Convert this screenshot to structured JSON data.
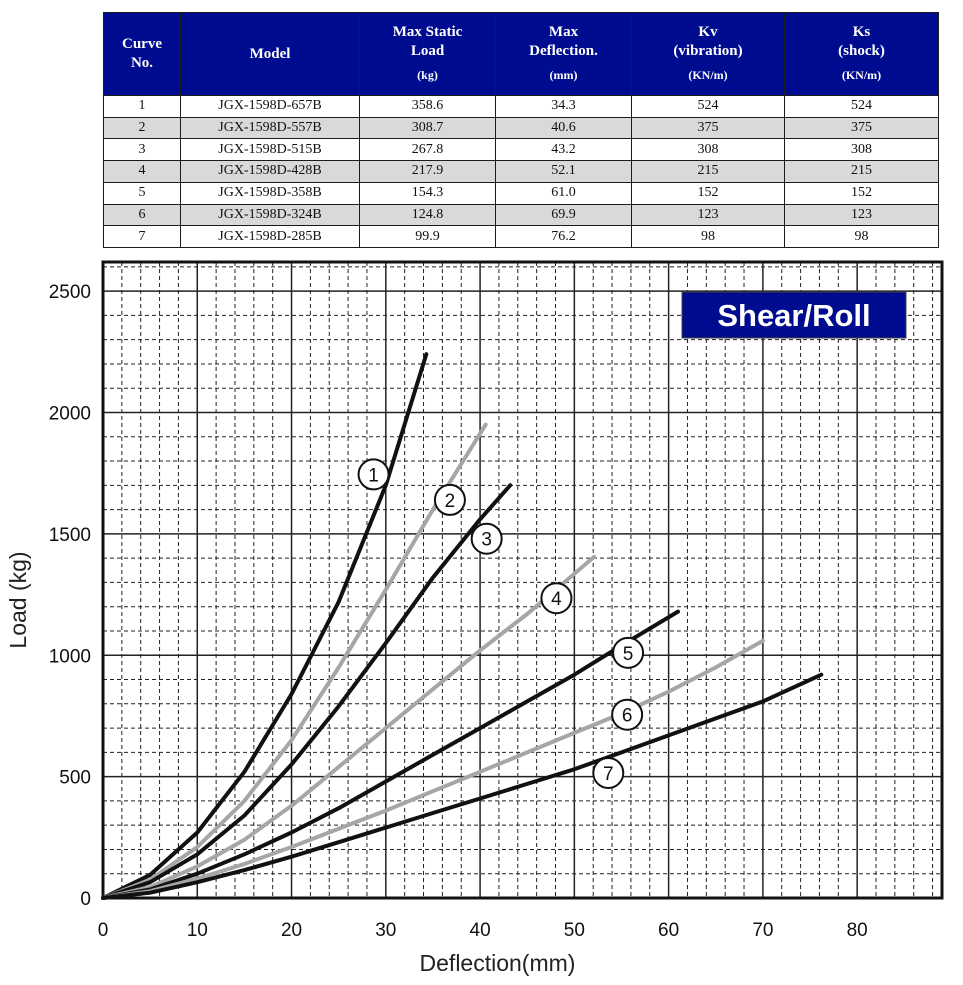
{
  "table": {
    "headers": [
      {
        "lines": [
          "Curve",
          "No."
        ],
        "unit": ""
      },
      {
        "lines": [
          "Model"
        ],
        "unit": ""
      },
      {
        "lines": [
          "Max Static",
          "Load"
        ],
        "unit": "(kg)"
      },
      {
        "lines": [
          "Max",
          "Deflection."
        ],
        "unit": "(mm)"
      },
      {
        "lines": [
          "Kv",
          "(vibration)"
        ],
        "unit": "(KN/m)"
      },
      {
        "lines": [
          "Ks",
          "(shock)"
        ],
        "unit": "(KN/m)"
      }
    ],
    "rows": [
      [
        "1",
        "JGX-1598D-657B",
        "358.6",
        "34.3",
        "524",
        "524"
      ],
      [
        "2",
        "JGX-1598D-557B",
        "308.7",
        "40.6",
        "375",
        "375"
      ],
      [
        "3",
        "JGX-1598D-515B",
        "267.8",
        "43.2",
        "308",
        "308"
      ],
      [
        "4",
        "JGX-1598D-428B",
        "217.9",
        "52.1",
        "215",
        "215"
      ],
      [
        "5",
        "JGX-1598D-358B",
        "154.3",
        "61.0",
        "152",
        "152"
      ],
      [
        "6",
        "JGX-1598D-324B",
        "124.8",
        "69.9",
        "123",
        "123"
      ],
      [
        "7",
        "JGX-1598D-285B",
        "99.9",
        "76.2",
        "98",
        "98"
      ]
    ],
    "colors": {
      "header_bg": "#000c8f",
      "header_text": "#ffffff",
      "stripe_bg": "#d9d9d9"
    }
  },
  "chart_data": {
    "type": "line",
    "badge": "Shear/Roll",
    "xlabel": "Deflection(mm)",
    "ylabel": "Load (kg)",
    "xlim": [
      0,
      89
    ],
    "ylim": [
      0,
      2620
    ],
    "xticks": [
      0,
      10,
      20,
      30,
      40,
      50,
      60,
      70,
      80
    ],
    "yticks": [
      0,
      500,
      1000,
      1500,
      2000,
      2500
    ],
    "grid": true,
    "colors": {
      "black_curve": "#111111",
      "gray_curve": "#a6a6a6",
      "badge_bg": "#000c8f",
      "badge_text": "#ffffff"
    },
    "series": [
      {
        "label": "1",
        "color": "#111111",
        "points": [
          [
            0,
            0
          ],
          [
            5,
            95
          ],
          [
            10,
            270
          ],
          [
            15,
            520
          ],
          [
            20,
            840
          ],
          [
            25,
            1220
          ],
          [
            30,
            1700
          ],
          [
            34.3,
            2240
          ]
        ],
        "label_at": [
          28.7,
          1745
        ]
      },
      {
        "label": "2",
        "color": "#a6a6a6",
        "points": [
          [
            0,
            0
          ],
          [
            5,
            75
          ],
          [
            10,
            210
          ],
          [
            15,
            400
          ],
          [
            20,
            650
          ],
          [
            25,
            950
          ],
          [
            30,
            1270
          ],
          [
            35,
            1600
          ],
          [
            40.6,
            1950
          ]
        ],
        "label_at": [
          36.8,
          1640
        ]
      },
      {
        "label": "3",
        "color": "#111111",
        "points": [
          [
            0,
            0
          ],
          [
            5,
            65
          ],
          [
            10,
            180
          ],
          [
            15,
            340
          ],
          [
            20,
            550
          ],
          [
            25,
            790
          ],
          [
            30,
            1050
          ],
          [
            35,
            1320
          ],
          [
            40,
            1560
          ],
          [
            43.2,
            1700
          ]
        ],
        "label_at": [
          40.7,
          1480
        ]
      },
      {
        "label": "4",
        "color": "#a6a6a6",
        "points": [
          [
            0,
            0
          ],
          [
            5,
            45
          ],
          [
            10,
            130
          ],
          [
            15,
            240
          ],
          [
            20,
            380
          ],
          [
            25,
            540
          ],
          [
            30,
            700
          ],
          [
            35,
            860
          ],
          [
            40,
            1020
          ],
          [
            45,
            1170
          ],
          [
            52.1,
            1405
          ]
        ],
        "label_at": [
          48.1,
          1235
        ]
      },
      {
        "label": "5",
        "color": "#111111",
        "points": [
          [
            0,
            0
          ],
          [
            5,
            35
          ],
          [
            10,
            100
          ],
          [
            15,
            180
          ],
          [
            20,
            270
          ],
          [
            25,
            370
          ],
          [
            30,
            480
          ],
          [
            35,
            590
          ],
          [
            40,
            700
          ],
          [
            45,
            810
          ],
          [
            50,
            920
          ],
          [
            55,
            1040
          ],
          [
            61,
            1180
          ]
        ],
        "label_at": [
          55.7,
          1010
        ]
      },
      {
        "label": "6",
        "color": "#a6a6a6",
        "points": [
          [
            0,
            0
          ],
          [
            5,
            28
          ],
          [
            10,
            80
          ],
          [
            15,
            140
          ],
          [
            20,
            210
          ],
          [
            25,
            285
          ],
          [
            30,
            360
          ],
          [
            35,
            440
          ],
          [
            40,
            520
          ],
          [
            45,
            600
          ],
          [
            50,
            680
          ],
          [
            55,
            760
          ],
          [
            60,
            850
          ],
          [
            65,
            950
          ],
          [
            70,
            1060
          ]
        ],
        "label_at": [
          55.6,
          755
        ]
      },
      {
        "label": "7",
        "color": "#111111",
        "points": [
          [
            0,
            0
          ],
          [
            5,
            22
          ],
          [
            10,
            65
          ],
          [
            15,
            115
          ],
          [
            20,
            170
          ],
          [
            25,
            230
          ],
          [
            30,
            290
          ],
          [
            35,
            350
          ],
          [
            40,
            410
          ],
          [
            45,
            470
          ],
          [
            50,
            530
          ],
          [
            55,
            600
          ],
          [
            60,
            670
          ],
          [
            65,
            740
          ],
          [
            70,
            810
          ],
          [
            76.2,
            920
          ]
        ],
        "label_at": [
          53.6,
          515
        ]
      }
    ]
  }
}
